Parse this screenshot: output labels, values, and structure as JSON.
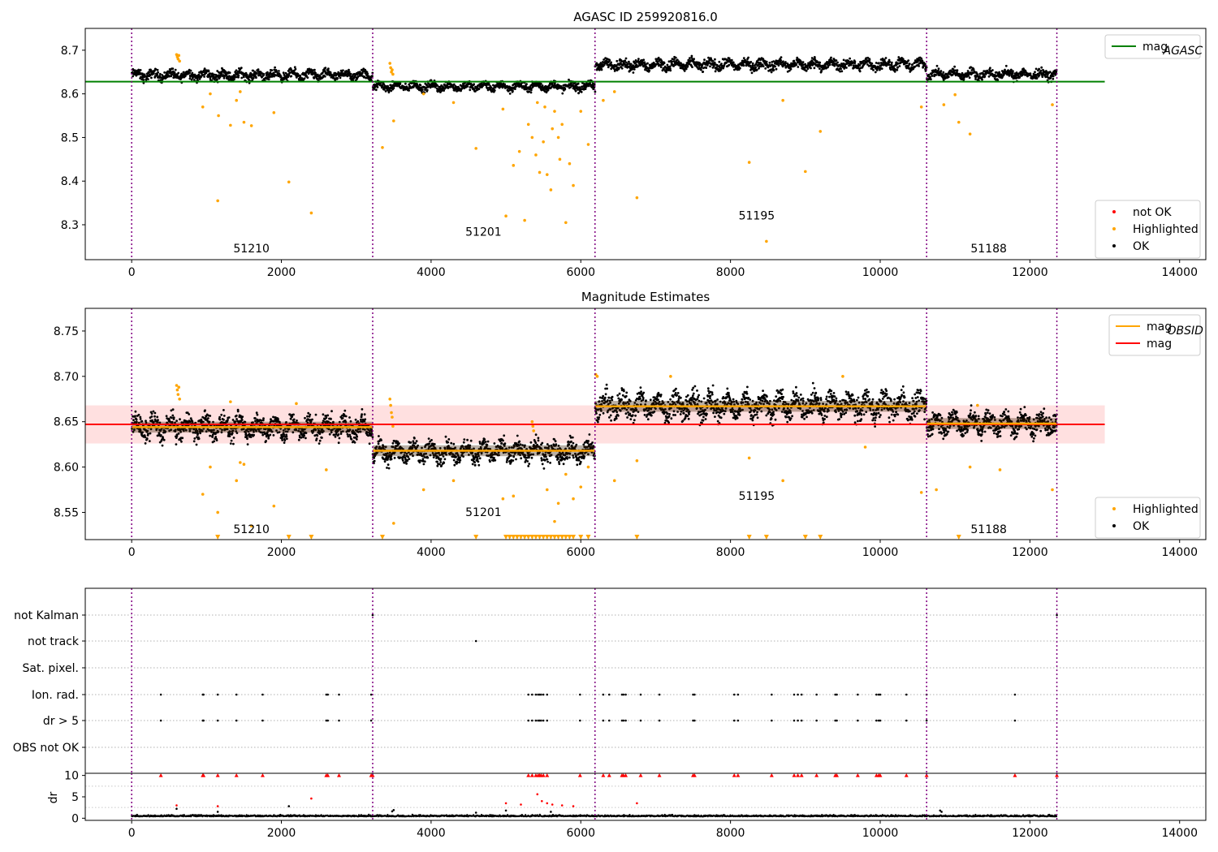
{
  "chart_data": [
    {
      "type": "scatter",
      "title": "AGASC ID 259920816.0",
      "xlim": [
        -620,
        14350
      ],
      "ylim": [
        8.22,
        8.75
      ],
      "x_ticks": [
        0,
        2000,
        4000,
        6000,
        8000,
        10000,
        12000,
        14000
      ],
      "y_ticks": [
        8.3,
        8.4,
        8.5,
        8.6,
        8.7
      ],
      "y_tick_labels": [
        "8.3",
        "8.4",
        "8.5",
        "8.6",
        "8.7"
      ],
      "obs_boundaries": [
        0,
        3220,
        6190,
        10620,
        12360
      ],
      "obs_labels": [
        {
          "text": "51210",
          "x": 1600,
          "y": 8.237
        },
        {
          "text": "51201",
          "x": 4700,
          "y": 8.275
        },
        {
          "text": "51195",
          "x": 8350,
          "y": 8.312
        },
        {
          "text": "51188",
          "x": 11450,
          "y": 8.237
        }
      ],
      "series": [
        {
          "name": "mag_AGASC",
          "kind": "line",
          "x": [
            -620,
            13000
          ],
          "y": [
            8.628,
            8.628
          ],
          "color": "#008000"
        },
        {
          "name": "OK",
          "kind": "band",
          "segments": [
            {
              "x0": 0,
              "x1": 3220,
              "y": 8.643,
              "spread": 0.016
            },
            {
              "x0": 3220,
              "x1": 6190,
              "y": 8.617,
              "spread": 0.014
            },
            {
              "x0": 6190,
              "x1": 10620,
              "y": 8.667,
              "spread": 0.017
            },
            {
              "x0": 10620,
              "x1": 12360,
              "y": 8.645,
              "spread": 0.015
            }
          ],
          "color": "#000000"
        },
        {
          "name": "Highlighted",
          "kind": "points",
          "color": "#ffa500",
          "x": [
            600,
            610,
            620,
            630,
            640,
            1150,
            1160,
            1320,
            1400,
            1450,
            1500,
            1600,
            1900,
            2100,
            2400,
            950,
            1050,
            3450,
            3460,
            3470,
            3480,
            3490,
            3350,
            3500,
            3900,
            4300,
            4600,
            4960,
            5000,
            5100,
            5180,
            5250,
            5300,
            5350,
            5400,
            5450,
            5500,
            5550,
            5600,
            5650,
            5700,
            5750,
            5800,
            5850,
            5900,
            6000,
            6100,
            6300,
            6450,
            6750,
            8250,
            8480,
            8700,
            9000,
            9200,
            10550,
            10850,
            11000,
            11050,
            11200,
            12300,
            5420,
            5520,
            5620,
            5720
          ],
          "y": [
            8.69,
            8.685,
            8.68,
            8.688,
            8.675,
            8.355,
            8.55,
            8.528,
            8.585,
            8.605,
            8.535,
            8.527,
            8.557,
            8.398,
            8.327,
            8.57,
            8.6,
            8.67,
            8.66,
            8.65,
            8.655,
            8.645,
            8.477,
            8.538,
            8.6,
            8.58,
            8.475,
            8.565,
            8.32,
            8.436,
            8.468,
            8.31,
            8.53,
            8.5,
            8.46,
            8.42,
            8.49,
            8.415,
            8.38,
            8.56,
            8.5,
            8.53,
            8.305,
            8.44,
            8.39,
            8.56,
            8.484,
            8.585,
            8.605,
            8.362,
            8.443,
            8.262,
            8.585,
            8.422,
            8.514,
            8.57,
            8.575,
            8.598,
            8.535,
            8.508,
            8.575,
            8.58,
            8.57,
            8.52,
            8.45
          ]
        },
        {
          "name": "not OK",
          "kind": "legend-only",
          "color": "#ff0000"
        }
      ],
      "legends": [
        {
          "position": "top-right",
          "entries": [
            {
              "label": "mag",
              "sub": "AGASC",
              "color": "#008000",
              "marker": "line"
            }
          ]
        },
        {
          "position": "lower-right",
          "entries": [
            {
              "label": "not OK",
              "color": "#ff0000",
              "marker": "dot"
            },
            {
              "label": "Highlighted",
              "color": "#ffa500",
              "marker": "dot"
            },
            {
              "label": "OK",
              "color": "#000000",
              "marker": "dot"
            }
          ]
        }
      ]
    },
    {
      "type": "scatter",
      "title": "Magnitude Estimates",
      "xlim": [
        -620,
        14350
      ],
      "ylim": [
        8.52,
        8.775
      ],
      "x_ticks": [
        0,
        2000,
        4000,
        6000,
        8000,
        10000,
        12000,
        14000
      ],
      "y_ticks": [
        8.55,
        8.6,
        8.65,
        8.7,
        8.75
      ],
      "y_tick_labels": [
        "8.55",
        "8.60",
        "8.65",
        "8.70",
        "8.75"
      ],
      "obs_boundaries": [
        0,
        3220,
        6190,
        10620,
        12360
      ],
      "obs_labels": [
        {
          "text": "51210",
          "x": 1600,
          "y": 8.527
        },
        {
          "text": "51201",
          "x": 4700,
          "y": 8.546
        },
        {
          "text": "51195",
          "x": 8350,
          "y": 8.564
        },
        {
          "text": "51188",
          "x": 11450,
          "y": 8.527
        }
      ],
      "mag": 8.647,
      "mag_band": [
        8.626,
        8.668
      ],
      "obsid_mags": [
        {
          "x0": 0,
          "x1": 3220,
          "y": 8.644
        },
        {
          "x0": 3220,
          "x1": 6190,
          "y": 8.618
        },
        {
          "x0": 6190,
          "x1": 10620,
          "y": 8.667
        },
        {
          "x0": 10620,
          "x1": 12360,
          "y": 8.648
        }
      ],
      "series": [
        {
          "name": "OK",
          "kind": "band",
          "segments": [
            {
              "x0": 0,
              "x1": 3220,
              "y": 8.644,
              "spread": 0.018
            },
            {
              "x0": 3220,
              "x1": 6190,
              "y": 8.617,
              "spread": 0.016
            },
            {
              "x0": 6190,
              "x1": 10620,
              "y": 8.668,
              "spread": 0.02
            },
            {
              "x0": 10620,
              "x1": 12360,
              "y": 8.648,
              "spread": 0.017
            }
          ],
          "color": "#000000"
        },
        {
          "name": "Highlighted",
          "kind": "points",
          "color": "#ffa500",
          "x": [
            600,
            610,
            620,
            630,
            640,
            1150,
            1320,
            1400,
            1450,
            1500,
            1600,
            1900,
            2200,
            2600,
            950,
            1050,
            3450,
            3460,
            3470,
            3480,
            3490,
            3500,
            3900,
            4300,
            4960,
            5100,
            5350,
            5360,
            5370,
            5550,
            5650,
            5700,
            5800,
            5900,
            6000,
            6100,
            6200,
            6220,
            6450,
            6750,
            7200,
            8250,
            8700,
            9500,
            9800,
            10550,
            10750,
            11200,
            11300,
            11600,
            12300
          ],
          "y": [
            8.69,
            8.685,
            8.68,
            8.688,
            8.675,
            8.55,
            8.672,
            8.585,
            8.605,
            8.603,
            8.535,
            8.557,
            8.67,
            8.597,
            8.57,
            8.6,
            8.675,
            8.668,
            8.66,
            8.655,
            8.645,
            8.538,
            8.575,
            8.585,
            8.565,
            8.568,
            8.65,
            8.645,
            8.64,
            8.575,
            8.54,
            8.56,
            8.592,
            8.565,
            8.578,
            8.6,
            8.702,
            8.7,
            8.585,
            8.607,
            8.7,
            8.61,
            8.585,
            8.7,
            8.622,
            8.572,
            8.575,
            8.6,
            8.668,
            8.597,
            8.575
          ]
        },
        {
          "name": "Highlighted (below axis)",
          "kind": "triangles",
          "color": "#ffa500",
          "x": [
            1150,
            2100,
            2400,
            3350,
            4600,
            5000,
            5050,
            5100,
            5150,
            5200,
            5250,
            5300,
            5350,
            5400,
            5450,
            5500,
            5550,
            5600,
            5650,
            5700,
            5750,
            5800,
            5850,
            5900,
            6000,
            6100,
            6750,
            8250,
            8480,
            9000,
            9200,
            11050
          ]
        }
      ],
      "legends": [
        {
          "position": "top-right",
          "entries": [
            {
              "label": "mag",
              "sub": "OBSID",
              "color": "#ffa500",
              "marker": "line"
            },
            {
              "label": "mag",
              "sub": "",
              "color": "#ff0000",
              "marker": "line"
            }
          ]
        },
        {
          "position": "lower-right",
          "entries": [
            {
              "label": "Highlighted",
              "color": "#ffa500",
              "marker": "dot"
            },
            {
              "label": "OK",
              "color": "#000000",
              "marker": "dot"
            }
          ]
        }
      ]
    },
    {
      "type": "scatter",
      "title": "",
      "xlim": [
        -620,
        14350
      ],
      "obs_boundaries": [
        0,
        3220,
        6190,
        10620,
        12360
      ],
      "flag_rows": [
        "not Kalman",
        "not track",
        "Sat. pixel.",
        "Ion. rad.",
        "dr > 5",
        "OBS not OK"
      ],
      "flag_points": {
        "not Kalman": [
          3220,
          12360
        ],
        "not track": [
          4600
        ],
        "Sat. pixel.": [],
        "Ion. rad.": [
          390,
          950,
          960,
          1150,
          1400,
          1750,
          2600,
          2620,
          2770,
          3200,
          5300,
          5350,
          5400,
          5430,
          5450,
          5470,
          5500,
          5550,
          5990,
          6300,
          6380,
          6550,
          6570,
          6600,
          6800,
          7050,
          7500,
          7520,
          8050,
          8100,
          8550,
          8850,
          8900,
          8950,
          9150,
          9400,
          9420,
          9700,
          9950,
          9980,
          10000,
          10350,
          10620,
          11800
        ],
        "dr > 5": [
          390,
          950,
          960,
          1150,
          1400,
          1750,
          2600,
          2620,
          2770,
          3200,
          5300,
          5350,
          5400,
          5430,
          5450,
          5470,
          5500,
          5550,
          5990,
          6300,
          6380,
          6550,
          6570,
          6600,
          6800,
          7050,
          7500,
          7520,
          8050,
          8100,
          8550,
          8850,
          8900,
          8950,
          9150,
          9400,
          9420,
          9700,
          9950,
          9980,
          10000,
          10350,
          10620,
          11800
        ],
        "OBS not OK": []
      }
    },
    {
      "type": "scatter",
      "title": "",
      "ylabel": "dr",
      "xlim": [
        -620,
        14350
      ],
      "ylim": [
        -0.5,
        10.5
      ],
      "x_ticks": [
        0,
        2000,
        4000,
        6000,
        8000,
        10000,
        12000,
        14000
      ],
      "y_ticks": [
        0,
        5,
        10
      ],
      "obs_boundaries": [
        0,
        3220,
        6190,
        10620,
        12360
      ],
      "baseline": [
        {
          "x0": 0,
          "x1": 12360,
          "y": 0.4
        }
      ],
      "outliers_red": {
        "x": [
          600,
          1150,
          2400,
          5000,
          5200,
          5420,
          5480,
          5550,
          5620,
          5750,
          5900,
          6750
        ],
        "y": [
          3,
          2.8,
          4.6,
          3.5,
          3.2,
          5.6,
          4,
          3.5,
          3.2,
          3,
          2.8,
          3.5
        ]
      },
      "outliers_black": {
        "x": [
          600,
          3480,
          3500,
          2100,
          4600,
          1150,
          10800,
          10820,
          5000,
          5600
        ],
        "y": [
          2.2,
          1.6,
          1.9,
          2.8,
          1.3,
          1.5,
          1.8,
          1.5,
          1.8,
          1.5
        ]
      },
      "markers_red": [
        390,
        950,
        960,
        1150,
        1400,
        1750,
        2600,
        2620,
        2770,
        3200,
        3220,
        5300,
        5350,
        5400,
        5430,
        5450,
        5470,
        5500,
        5550,
        5990,
        6300,
        6380,
        6550,
        6570,
        6600,
        6800,
        7050,
        7500,
        7520,
        8050,
        8100,
        8550,
        8850,
        8900,
        8950,
        9150,
        9400,
        9420,
        9700,
        9950,
        9980,
        10000,
        10350,
        10620,
        11800,
        12360
      ]
    }
  ]
}
